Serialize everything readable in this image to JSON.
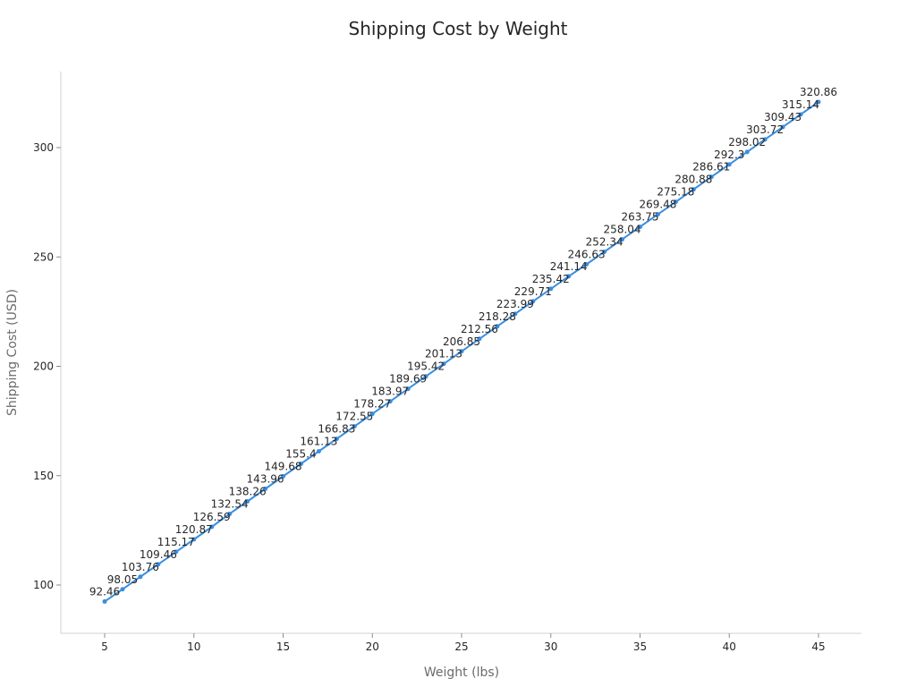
{
  "chart_data": {
    "type": "line",
    "title": "Shipping Cost by Weight",
    "xlabel": "Weight (lbs)",
    "ylabel": "Shipping Cost (USD)",
    "x": [
      5,
      6,
      7,
      8,
      9,
      10,
      11,
      12,
      13,
      14,
      15,
      16,
      17,
      18,
      19,
      20,
      21,
      22,
      23,
      24,
      25,
      26,
      27,
      28,
      29,
      30,
      31,
      32,
      33,
      34,
      35,
      36,
      37,
      38,
      39,
      40,
      41,
      42,
      43,
      44,
      45
    ],
    "series": [
      {
        "name": "Shipping Cost",
        "color": "#3a8ee0",
        "values": [
          92.46,
          98.05,
          103.76,
          109.46,
          115.17,
          120.87,
          126.59,
          132.54,
          138.26,
          143.96,
          149.68,
          155.4,
          161.13,
          166.83,
          172.55,
          178.27,
          183.97,
          189.69,
          195.42,
          201.13,
          206.85,
          212.56,
          218.28,
          223.99,
          229.71,
          235.42,
          241.14,
          246.63,
          252.34,
          258.04,
          263.75,
          269.48,
          275.18,
          280.88,
          286.61,
          292.3,
          298.02,
          303.72,
          309.43,
          315.14,
          320.86
        ]
      }
    ],
    "xticks": [
      5,
      10,
      15,
      20,
      25,
      30,
      35,
      40,
      45
    ],
    "yticks": [
      100,
      150,
      200,
      250,
      300
    ],
    "xlim": [
      2.4,
      47.3
    ],
    "ylim": [
      78.4,
      335.2
    ],
    "grid": false,
    "legend": null,
    "data_labels": true
  }
}
